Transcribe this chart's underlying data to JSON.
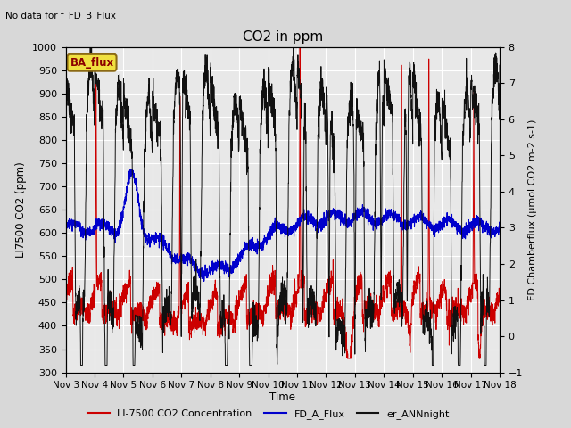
{
  "title": "CO2 in ppm",
  "top_left_text": "No data for f_FD_B_Flux",
  "annotation_box": "BA_flux",
  "xlabel": "Time",
  "ylabel_left": "LI7500 CO2 (ppm)",
  "ylabel_right": "FD Chamberflux (μmol CO2 m-2 s-1)",
  "ylim_left": [
    300,
    1000
  ],
  "ylim_right": [
    -1.0,
    8.0
  ],
  "yticks_left": [
    300,
    350,
    400,
    450,
    500,
    550,
    600,
    650,
    700,
    750,
    800,
    850,
    900,
    950,
    1000
  ],
  "yticks_right": [
    -1.0,
    0.0,
    1.0,
    2.0,
    3.0,
    4.0,
    5.0,
    6.0,
    7.0,
    8.0
  ],
  "date_labels": [
    "Nov 3",
    "Nov 4",
    "Nov 5",
    "Nov 6",
    "Nov 7",
    "Nov 8",
    "Nov 9",
    "Nov 10",
    "Nov 11",
    "Nov 12",
    "Nov 13",
    "Nov 14",
    "Nov 15",
    "Nov 16",
    "Nov 17",
    "Nov 18"
  ],
  "legend_entries": [
    {
      "label": "LI-7500 CO2 Concentration",
      "color": "#cc0000",
      "linestyle": "-"
    },
    {
      "label": "FD_A_Flux",
      "color": "#0000cc",
      "linestyle": "-"
    },
    {
      "label": "er_ANNnight",
      "color": "#000000",
      "linestyle": "-"
    }
  ],
  "background_color": "#d8d8d8",
  "plot_bg_color": "#e8e8e8",
  "grid_color": "#ffffff",
  "n_points": 3000,
  "figsize": [
    6.4,
    4.8
  ],
  "dpi": 100
}
